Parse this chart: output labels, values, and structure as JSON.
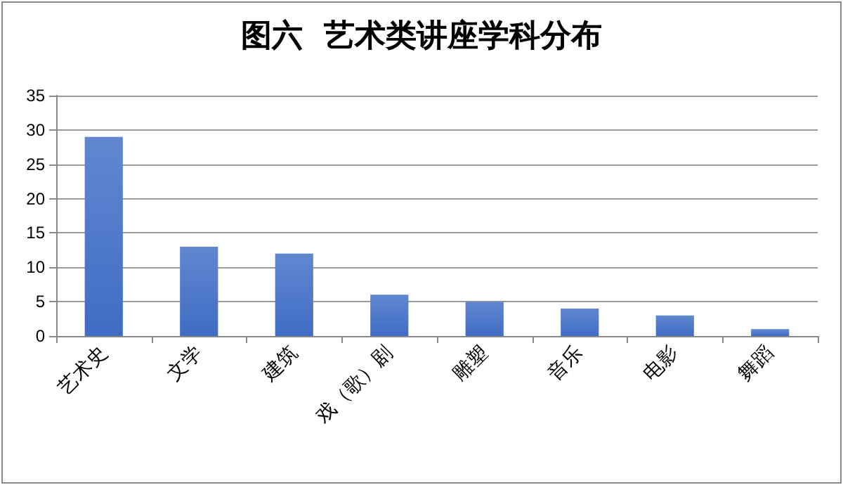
{
  "chart_data": {
    "type": "bar",
    "title": "图六  艺术类讲座学科分布",
    "categories": [
      "艺术史",
      "文学",
      "建筑",
      "戏（歌）剧",
      "雕塑",
      "音乐",
      "电影",
      "舞蹈"
    ],
    "values": [
      29,
      13,
      12,
      6,
      5,
      4,
      3,
      1
    ],
    "color": "#3f6cc4",
    "ylim": [
      0,
      35
    ],
    "yticks": [
      0,
      5,
      10,
      15,
      20,
      25,
      30,
      35
    ],
    "grid": "y"
  }
}
